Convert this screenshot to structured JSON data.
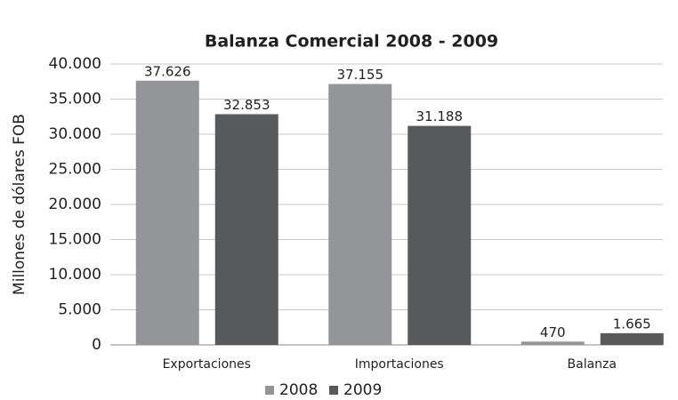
{
  "chart_data": {
    "type": "bar",
    "title": "Balanza Comercial 2008 - 2009",
    "y_axis_label": "Millones de dólares FOB",
    "categories": [
      "Exportaciones",
      "Importaciones",
      "Balanza"
    ],
    "series": [
      {
        "name": "2008",
        "color": "#939598",
        "values": [
          37626,
          37155,
          470
        ],
        "value_labels": [
          "37.626",
          "37.155",
          "470"
        ]
      },
      {
        "name": "2009",
        "color": "#58595b",
        "values": [
          32853,
          31188,
          1665
        ],
        "value_labels": [
          "32.853",
          "31.188",
          "1.665"
        ]
      }
    ],
    "ylim": [
      0,
      40000
    ],
    "yticks": [
      0,
      {
        "value": 5000,
        "label": "5.000"
      },
      {
        "value": 10000,
        "label": "10.000"
      },
      {
        "value": 15000,
        "label": "15.000"
      },
      {
        "value": 20000,
        "label": "20.000"
      },
      {
        "value": 25000,
        "label": "25.000"
      },
      {
        "value": 30000,
        "label": "30.000"
      },
      {
        "value": 35000,
        "label": "35.000"
      },
      {
        "value": 40000,
        "label": "40.000"
      }
    ],
    "grid": true,
    "legend": "bottom"
  }
}
